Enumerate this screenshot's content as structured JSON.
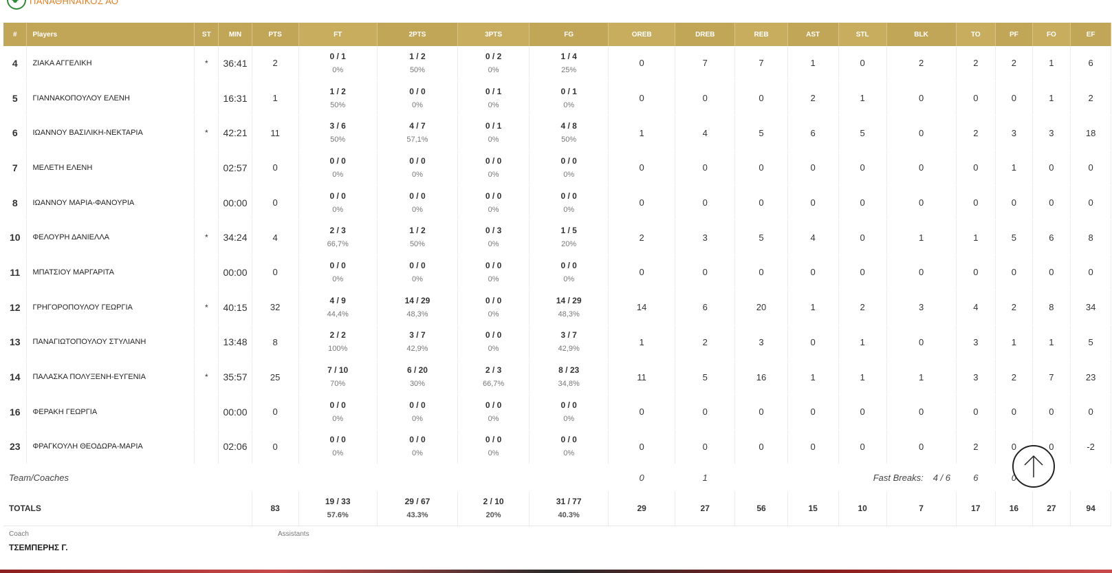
{
  "team": {
    "name": "ΠΑΝΑΘΗΝΑΪΚΟΣ ΑΟ"
  },
  "columns": [
    "#",
    "Players",
    "ST",
    "MIN",
    "PTS",
    "FT",
    "2PTS",
    "3PTS",
    "FG",
    "OREB",
    "DREB",
    "REB",
    "AST",
    "STL",
    "BLK",
    "TO",
    "PF",
    "FO",
    "EF"
  ],
  "players": [
    {
      "no": "4",
      "name": "ΖΙΑΚΑ ΑΓΓΕΛΙΚΗ",
      "st": "*",
      "min": "36:41",
      "pts": "2",
      "ft": "0 / 1",
      "ftp": "0%",
      "p2": "1 / 2",
      "p2p": "50%",
      "p3": "0 / 2",
      "p3p": "0%",
      "fg": "1 / 4",
      "fgp": "25%",
      "oreb": "0",
      "dreb": "7",
      "reb": "7",
      "ast": "1",
      "stl": "0",
      "blk": "2",
      "to": "2",
      "pf": "2",
      "fo": "1",
      "ef": "6"
    },
    {
      "no": "5",
      "name": "ΓΙΑΝΝΑΚΟΠΟΥΛΟΥ ΕΛΕΝΗ",
      "st": "",
      "min": "16:31",
      "pts": "1",
      "ft": "1 / 2",
      "ftp": "50%",
      "p2": "0 / 0",
      "p2p": "0%",
      "p3": "0 / 1",
      "p3p": "0%",
      "fg": "0 / 1",
      "fgp": "0%",
      "oreb": "0",
      "dreb": "0",
      "reb": "0",
      "ast": "2",
      "stl": "1",
      "blk": "0",
      "to": "0",
      "pf": "0",
      "fo": "1",
      "ef": "2"
    },
    {
      "no": "6",
      "name": "ΙΩΑΝΝΟΥ ΒΑΣΙΛΙΚΗ-ΝΕΚΤΑΡΙΑ",
      "st": "*",
      "min": "42:21",
      "pts": "11",
      "ft": "3 / 6",
      "ftp": "50%",
      "p2": "4 / 7",
      "p2p": "57,1%",
      "p3": "0 / 1",
      "p3p": "0%",
      "fg": "4 / 8",
      "fgp": "50%",
      "oreb": "1",
      "dreb": "4",
      "reb": "5",
      "ast": "6",
      "stl": "5",
      "blk": "0",
      "to": "2",
      "pf": "3",
      "fo": "3",
      "ef": "18"
    },
    {
      "no": "7",
      "name": "ΜΕΛΕΤΗ ΕΛΕΝΗ",
      "st": "",
      "min": "02:57",
      "pts": "0",
      "ft": "0 / 0",
      "ftp": "0%",
      "p2": "0 / 0",
      "p2p": "0%",
      "p3": "0 / 0",
      "p3p": "0%",
      "fg": "0 / 0",
      "fgp": "0%",
      "oreb": "0",
      "dreb": "0",
      "reb": "0",
      "ast": "0",
      "stl": "0",
      "blk": "0",
      "to": "0",
      "pf": "1",
      "fo": "0",
      "ef": "0"
    },
    {
      "no": "8",
      "name": "ΙΩΑΝΝΟΥ ΜΑΡΙΑ-ΦΑΝΟΥΡΙΑ",
      "st": "",
      "min": "00:00",
      "pts": "0",
      "ft": "0 / 0",
      "ftp": "0%",
      "p2": "0 / 0",
      "p2p": "0%",
      "p3": "0 / 0",
      "p3p": "0%",
      "fg": "0 / 0",
      "fgp": "0%",
      "oreb": "0",
      "dreb": "0",
      "reb": "0",
      "ast": "0",
      "stl": "0",
      "blk": "0",
      "to": "0",
      "pf": "0",
      "fo": "0",
      "ef": "0"
    },
    {
      "no": "10",
      "name": "ΦΕΛΟΥΡΗ ΔΑΝΙΕΛΛΑ",
      "st": "*",
      "min": "34:24",
      "pts": "4",
      "ft": "2 / 3",
      "ftp": "66,7%",
      "p2": "1 / 2",
      "p2p": "50%",
      "p3": "0 / 3",
      "p3p": "0%",
      "fg": "1 / 5",
      "fgp": "20%",
      "oreb": "2",
      "dreb": "3",
      "reb": "5",
      "ast": "4",
      "stl": "0",
      "blk": "1",
      "to": "1",
      "pf": "5",
      "fo": "6",
      "ef": "8"
    },
    {
      "no": "11",
      "name": "ΜΠΑΤΣΙΟΥ ΜΑΡΓΑΡΙΤΑ",
      "st": "",
      "min": "00:00",
      "pts": "0",
      "ft": "0 / 0",
      "ftp": "0%",
      "p2": "0 / 0",
      "p2p": "0%",
      "p3": "0 / 0",
      "p3p": "0%",
      "fg": "0 / 0",
      "fgp": "0%",
      "oreb": "0",
      "dreb": "0",
      "reb": "0",
      "ast": "0",
      "stl": "0",
      "blk": "0",
      "to": "0",
      "pf": "0",
      "fo": "0",
      "ef": "0"
    },
    {
      "no": "12",
      "name": "ΓΡΗΓΟΡΟΠΟΥΛΟΥ ΓΕΩΡΓΙΑ",
      "st": "*",
      "min": "40:15",
      "pts": "32",
      "ft": "4 / 9",
      "ftp": "44,4%",
      "p2": "14 / 29",
      "p2p": "48,3%",
      "p3": "0 / 0",
      "p3p": "0%",
      "fg": "14 / 29",
      "fgp": "48,3%",
      "oreb": "14",
      "dreb": "6",
      "reb": "20",
      "ast": "1",
      "stl": "2",
      "blk": "3",
      "to": "4",
      "pf": "2",
      "fo": "8",
      "ef": "34"
    },
    {
      "no": "13",
      "name": "ΠΑΝΑΓΙΩΤΟΠΟΥΛΟΥ ΣΤΥΛΙΑΝΗ",
      "st": "",
      "min": "13:48",
      "pts": "8",
      "ft": "2 / 2",
      "ftp": "100%",
      "p2": "3 / 7",
      "p2p": "42,9%",
      "p3": "0 / 0",
      "p3p": "0%",
      "fg": "3 / 7",
      "fgp": "42,9%",
      "oreb": "1",
      "dreb": "2",
      "reb": "3",
      "ast": "0",
      "stl": "1",
      "blk": "0",
      "to": "3",
      "pf": "1",
      "fo": "1",
      "ef": "5"
    },
    {
      "no": "14",
      "name": "ΠΑΛΑΣΚΑ ΠΟΛΥΞΕΝΗ-ΕΥΓΕΝΙΑ",
      "st": "*",
      "min": "35:57",
      "pts": "25",
      "ft": "7 / 10",
      "ftp": "70%",
      "p2": "6 / 20",
      "p2p": "30%",
      "p3": "2 / 3",
      "p3p": "66,7%",
      "fg": "8 / 23",
      "fgp": "34,8%",
      "oreb": "11",
      "dreb": "5",
      "reb": "16",
      "ast": "1",
      "stl": "1",
      "blk": "1",
      "to": "3",
      "pf": "2",
      "fo": "7",
      "ef": "23"
    },
    {
      "no": "16",
      "name": "ΦΕΡΑΚΗ ΓΕΩΡΓΙΑ",
      "st": "",
      "min": "00:00",
      "pts": "0",
      "ft": "0 / 0",
      "ftp": "0%",
      "p2": "0 / 0",
      "p2p": "0%",
      "p3": "0 / 0",
      "p3p": "0%",
      "fg": "0 / 0",
      "fgp": "0%",
      "oreb": "0",
      "dreb": "0",
      "reb": "0",
      "ast": "0",
      "stl": "0",
      "blk": "0",
      "to": "0",
      "pf": "0",
      "fo": "0",
      "ef": "0"
    },
    {
      "no": "23",
      "name": "ΦΡΑΓΚΟΥΛΗ ΘΕΟΔΩΡΑ-ΜΑΡΙΑ",
      "st": "",
      "min": "02:06",
      "pts": "0",
      "ft": "0 / 0",
      "ftp": "0%",
      "p2": "0 / 0",
      "p2p": "0%",
      "p3": "0 / 0",
      "p3p": "0%",
      "fg": "0 / 0",
      "fgp": "0%",
      "oreb": "0",
      "dreb": "0",
      "reb": "0",
      "ast": "0",
      "stl": "0",
      "blk": "0",
      "to": "2",
      "pf": "0",
      "fo": "0",
      "ef": "-2"
    }
  ],
  "team_row": {
    "label": "Team/Coaches",
    "oreb": "0",
    "dreb": "1",
    "fast_breaks_label": "Fast Breaks:",
    "fast_breaks_value": "4 / 6",
    "to": "6",
    "pf": "0"
  },
  "totals": {
    "label": "TOTALS",
    "pts": "83",
    "ft": "19 / 33",
    "ftp": "57.6%",
    "p2": "29 / 67",
    "p2p": "43.3%",
    "p3": "2 / 10",
    "p3p": "20%",
    "fg": "31 / 77",
    "fgp": "40.3%",
    "oreb": "29",
    "dreb": "27",
    "reb": "56",
    "ast": "15",
    "stl": "10",
    "blk": "7",
    "to": "17",
    "pf": "16",
    "fo": "27",
    "ef": "94"
  },
  "staff": {
    "coach_label": "Coach",
    "coach_name": "ΤΣΕΜΠΕΡΗΣ Γ.",
    "assistants_label": "Assistants"
  },
  "icons": {
    "scroll_top": "arrow-up-icon",
    "logo": "clover-logo-icon"
  }
}
